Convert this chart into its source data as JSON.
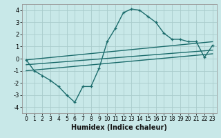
{
  "xlabel": "Humidex (Indice chaleur)",
  "ylabel": "",
  "xlim": [
    -0.5,
    23.5
  ],
  "ylim": [
    -4.5,
    4.5
  ],
  "yticks": [
    -4,
    -3,
    -2,
    -1,
    0,
    1,
    2,
    3,
    4
  ],
  "xticks": [
    0,
    1,
    2,
    3,
    4,
    5,
    6,
    7,
    8,
    9,
    10,
    11,
    12,
    13,
    14,
    15,
    16,
    17,
    18,
    19,
    20,
    21,
    22,
    23
  ],
  "background_color": "#c8e8e8",
  "grid_color": "#aacccc",
  "line_color": "#1a6b6b",
  "curve1_x": [
    0,
    1,
    2,
    3,
    4,
    5,
    6,
    7,
    8,
    9,
    10,
    11,
    12,
    13,
    14,
    15,
    16,
    17,
    18,
    19,
    20,
    21,
    22,
    23
  ],
  "curve1_y": [
    -0.1,
    -1.0,
    -1.4,
    -1.8,
    -2.3,
    -3.0,
    -3.6,
    -2.3,
    -2.3,
    -0.8,
    1.4,
    2.5,
    3.8,
    4.1,
    4.0,
    3.5,
    3.0,
    2.1,
    1.6,
    1.6,
    1.4,
    1.4,
    0.1,
    1.1
  ],
  "line1_x": [
    0,
    23
  ],
  "line1_y": [
    -0.1,
    1.4
  ],
  "line2_x": [
    0,
    23
  ],
  "line2_y": [
    -0.5,
    0.7
  ],
  "line3_x": [
    0,
    23
  ],
  "line3_y": [
    -1.0,
    0.4
  ]
}
